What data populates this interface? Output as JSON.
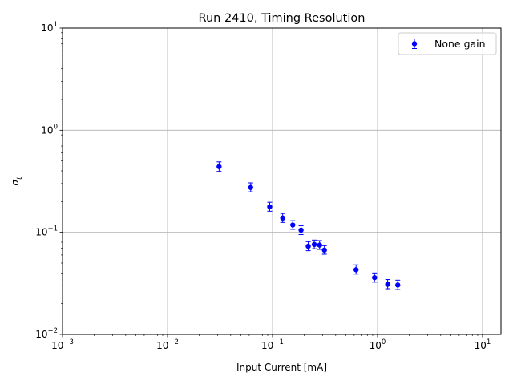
{
  "chart_data": {
    "type": "scatter",
    "title": "Run 2410, Timing Resolution",
    "xlabel": "Input Current [mA]",
    "ylabel_symbol": "σ",
    "ylabel_subscript": "t",
    "xscale": "log",
    "yscale": "log",
    "xlim": [
      0.001,
      15
    ],
    "ylim": [
      0.01,
      10
    ],
    "x_ticks": [
      {
        "value": 0.001,
        "base": "10",
        "exp": "−3"
      },
      {
        "value": 0.01,
        "base": "10",
        "exp": "−2"
      },
      {
        "value": 0.1,
        "base": "10",
        "exp": "−1"
      },
      {
        "value": 1,
        "base": "10",
        "exp": "0"
      },
      {
        "value": 10,
        "base": "10",
        "exp": "1"
      }
    ],
    "y_ticks": [
      {
        "value": 0.01,
        "base": "10",
        "exp": "−2"
      },
      {
        "value": 0.1,
        "base": "10",
        "exp": "−1"
      },
      {
        "value": 1,
        "base": "10",
        "exp": "0"
      },
      {
        "value": 10,
        "base": "10",
        "exp": "1"
      }
    ],
    "grid": true,
    "legend_position": "top-right",
    "series": [
      {
        "name": "None gain",
        "color": "#0000ff",
        "marker": "circle",
        "points": [
          {
            "x": 0.031,
            "y": 0.44,
            "yerr_low": 0.395,
            "yerr_high": 0.49
          },
          {
            "x": 0.062,
            "y": 0.275,
            "yerr_low": 0.249,
            "yerr_high": 0.305
          },
          {
            "x": 0.094,
            "y": 0.178,
            "yerr_low": 0.161,
            "yerr_high": 0.197
          },
          {
            "x": 0.125,
            "y": 0.138,
            "yerr_low": 0.125,
            "yerr_high": 0.153
          },
          {
            "x": 0.156,
            "y": 0.118,
            "yerr_low": 0.107,
            "yerr_high": 0.13
          },
          {
            "x": 0.187,
            "y": 0.105,
            "yerr_low": 0.095,
            "yerr_high": 0.116
          },
          {
            "x": 0.219,
            "y": 0.073,
            "yerr_low": 0.066,
            "yerr_high": 0.081
          },
          {
            "x": 0.25,
            "y": 0.076,
            "yerr_low": 0.069,
            "yerr_high": 0.084
          },
          {
            "x": 0.281,
            "y": 0.075,
            "yerr_low": 0.068,
            "yerr_high": 0.083
          },
          {
            "x": 0.312,
            "y": 0.067,
            "yerr_low": 0.061,
            "yerr_high": 0.074
          },
          {
            "x": 0.625,
            "y": 0.043,
            "yerr_low": 0.039,
            "yerr_high": 0.048
          },
          {
            "x": 0.937,
            "y": 0.036,
            "yerr_low": 0.0325,
            "yerr_high": 0.04
          },
          {
            "x": 1.25,
            "y": 0.031,
            "yerr_low": 0.028,
            "yerr_high": 0.0345
          },
          {
            "x": 1.56,
            "y": 0.0305,
            "yerr_low": 0.0275,
            "yerr_high": 0.034
          }
        ]
      }
    ]
  }
}
